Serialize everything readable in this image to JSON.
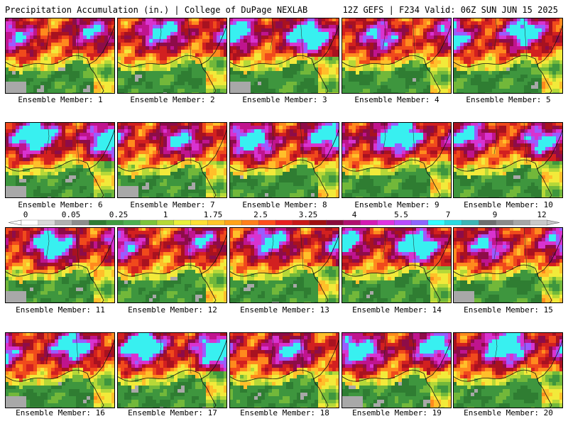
{
  "header": {
    "left": "Precipitation Accumulation (in.) | College of DuPage NEXLAB",
    "right": "12Z GEFS | F234 Valid: 06Z SUN JUN 15 2025"
  },
  "colorbar": {
    "labels": [
      "0",
      "0.05",
      "0.25",
      "1",
      "1.75",
      "2.5",
      "3.25",
      "4",
      "5.5",
      "7",
      "9",
      "12"
    ],
    "colors": [
      "#ffffff",
      "#d9d9d9",
      "#b0b0b0",
      "#8c8c8c",
      "#2e7d32",
      "#3f9b3f",
      "#4caf50",
      "#7cc43a",
      "#b5d936",
      "#e8f03a",
      "#ffe033",
      "#ffc629",
      "#ffa31a",
      "#ff7f1a",
      "#ff4d1a",
      "#e82020",
      "#c81818",
      "#a01010",
      "#8a0b3c",
      "#b0106e",
      "#d41ab4",
      "#e033e0",
      "#b84cff",
      "#8c66ff",
      "#33ffff",
      "#29d9e0",
      "#3cb5b5",
      "#6e6e6e",
      "#8a8a8a",
      "#a6a6a6",
      "#c8c8c8"
    ]
  },
  "members": [
    {
      "label": "Ensemble Member: 1"
    },
    {
      "label": "Ensemble Member: 2"
    },
    {
      "label": "Ensemble Member: 3"
    },
    {
      "label": "Ensemble Member: 4"
    },
    {
      "label": "Ensemble Member: 5"
    },
    {
      "label": "Ensemble Member: 6"
    },
    {
      "label": "Ensemble Member: 7"
    },
    {
      "label": "Ensemble Member: 8"
    },
    {
      "label": "Ensemble Member: 9"
    },
    {
      "label": "Ensemble Member: 10"
    },
    {
      "label": "Ensemble Member: 11"
    },
    {
      "label": "Ensemble Member: 12"
    },
    {
      "label": "Ensemble Member: 13"
    },
    {
      "label": "Ensemble Member: 14"
    },
    {
      "label": "Ensemble Member: 15"
    },
    {
      "label": "Ensemble Member: 16"
    },
    {
      "label": "Ensemble Member: 17"
    },
    {
      "label": "Ensemble Member: 18"
    },
    {
      "label": "Ensemble Member: 19"
    },
    {
      "label": "Ensemble Member: 20"
    }
  ]
}
